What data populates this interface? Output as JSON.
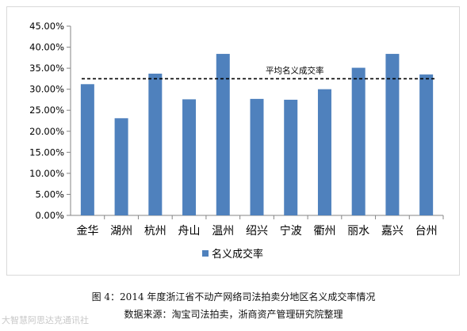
{
  "chart_data": {
    "type": "bar",
    "categories": [
      "金华",
      "湖州",
      "杭州",
      "舟山",
      "温州",
      "绍兴",
      "宁波",
      "衢州",
      "丽水",
      "嘉兴",
      "台州"
    ],
    "series": [
      {
        "name": "名义成交率",
        "values": [
          31.2,
          23.1,
          33.7,
          27.6,
          38.4,
          27.7,
          27.5,
          30.0,
          35.1,
          38.4,
          33.5
        ]
      }
    ],
    "reference_line": {
      "label": "平均名义成交率",
      "value": 32.5,
      "style": "dashed"
    },
    "y_ticks": [
      "0.00%",
      "5.00%",
      "10.00%",
      "15.00%",
      "20.00%",
      "25.00%",
      "30.00%",
      "35.00%",
      "40.00%",
      "45.00%"
    ],
    "ylim": [
      0,
      45
    ],
    "y_format": "percent",
    "grid": false,
    "legend_position": "bottom",
    "bar_color": "#4f81bd"
  },
  "caption": {
    "line1": "图 4：2014 年度浙江省不动产网络司法拍卖分地区名义成交率情况",
    "line2": "数据来源：淘宝司法拍卖，浙商资产管理研究院整理"
  },
  "watermark": "大智慧阿思达克通讯社"
}
